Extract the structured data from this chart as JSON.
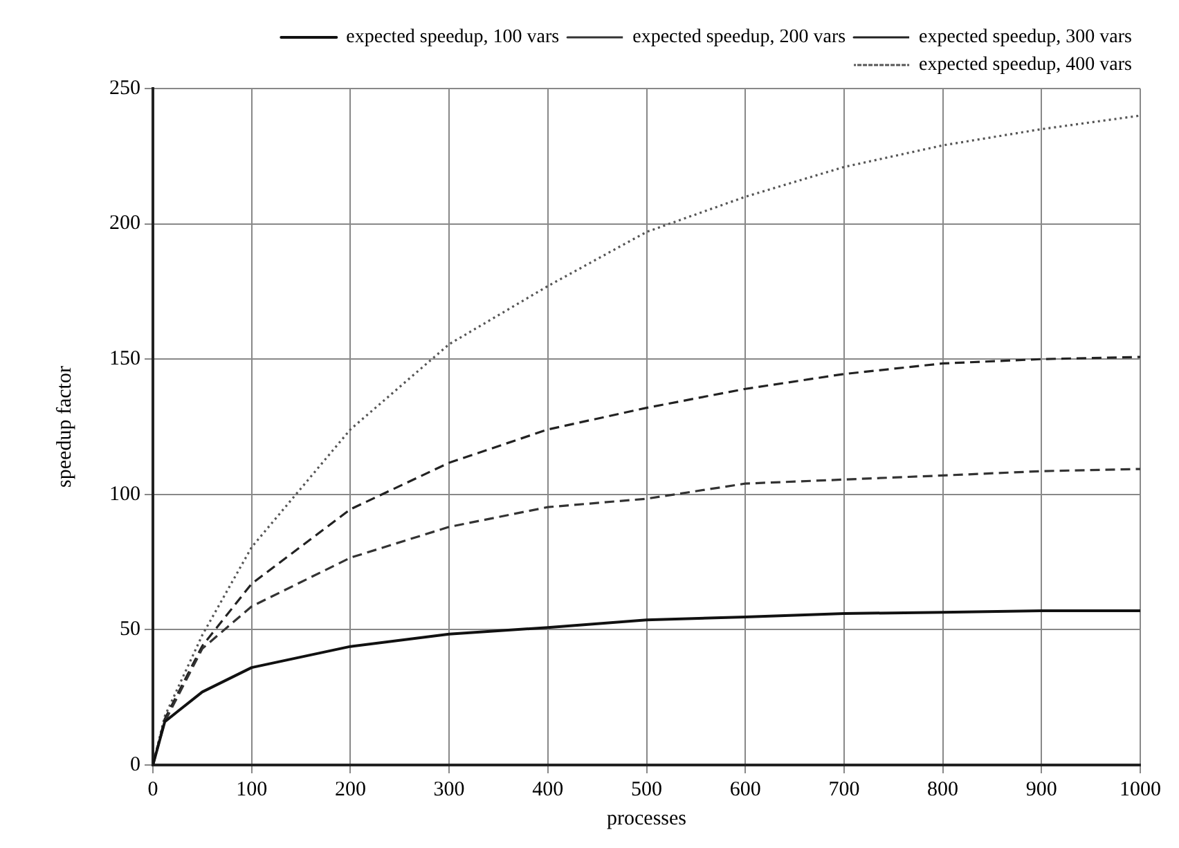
{
  "chart_data": {
    "type": "line",
    "xlabel": "processes",
    "ylabel": "speedup factor",
    "x": [
      0,
      12,
      50,
      100,
      200,
      300,
      400,
      500,
      600,
      700,
      800,
      900,
      1000
    ],
    "series": [
      {
        "name": "expected speedup, 100 vars",
        "color": "#111111",
        "line_style": "solid",
        "values": [
          0,
          16,
          27,
          36,
          43.8,
          48.4,
          50.8,
          53.6,
          54.7,
          56,
          56.4,
          57,
          57
        ]
      },
      {
        "name": "expected speedup, 200 vars",
        "color": "#333333",
        "line_style": "dashed",
        "values": [
          0,
          16,
          43,
          58.6,
          76.6,
          88,
          95.3,
          98.4,
          104,
          105.5,
          107,
          108.6,
          109.4
        ]
      },
      {
        "name": "expected speedup, 300 vars",
        "color": "#222222",
        "line_style": "dashed",
        "values": [
          0,
          17,
          44,
          67,
          94.5,
          111.7,
          124,
          132,
          139,
          144.5,
          148.4,
          150,
          150.8
        ]
      },
      {
        "name": "expected speedup, 400 vars",
        "color": "#555555",
        "line_style": "dotted",
        "values": [
          0,
          18,
          48,
          80.5,
          124,
          155.5,
          177,
          197,
          210,
          221,
          229,
          235,
          240
        ]
      }
    ],
    "xlim": [
      0,
      1000
    ],
    "xticks": [
      0,
      100,
      200,
      300,
      400,
      500,
      600,
      700,
      800,
      900,
      1000
    ],
    "ylim": [
      0,
      250
    ],
    "yticks": [
      0,
      50,
      100,
      150,
      200,
      250
    ],
    "grid": true,
    "legend": "top right",
    "marker": "none"
  }
}
